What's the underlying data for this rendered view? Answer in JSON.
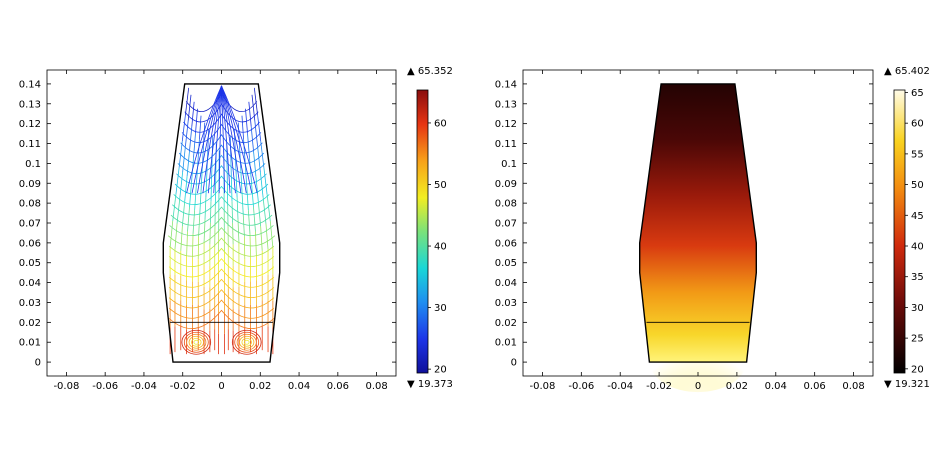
{
  "chart_data": [
    {
      "type": "contour",
      "title": "",
      "xlabel": "",
      "ylabel": "",
      "xlim": [
        -0.09,
        0.09
      ],
      "ylim": [
        -0.007,
        0.147
      ],
      "xticks": [
        -0.08,
        -0.06,
        -0.04,
        -0.02,
        0,
        0.02,
        0.04,
        0.06,
        0.08
      ],
      "xtick_labels": [
        "-0.08",
        "-0.06",
        "-0.04",
        "-0.02",
        "0",
        "0.02",
        "0.04",
        "0.06",
        "0.08"
      ],
      "yticks": [
        0,
        0.01,
        0.02,
        0.03,
        0.04,
        0.05,
        0.06,
        0.07,
        0.08,
        0.09,
        0.1,
        0.11,
        0.12,
        0.13,
        0.14
      ],
      "ytick_labels": [
        "0",
        "0.01",
        "0.02",
        "0.03",
        "0.04",
        "0.05",
        "0.06",
        "0.07",
        "0.08",
        "0.09",
        "0.1",
        "0.11",
        "0.12",
        "0.13",
        "0.14"
      ],
      "geometry_outline": [
        [
          -0.025,
          0
        ],
        [
          0.025,
          0
        ],
        [
          0.03,
          0.06
        ],
        [
          0.03,
          0.045
        ],
        [
          0.019,
          0.14
        ],
        [
          -0.019,
          0.14
        ],
        [
          -0.03,
          0.06
        ],
        [
          -0.03,
          0.045
        ]
      ],
      "divider_y": 0.02,
      "colormap": "rainbow",
      "colorbar": {
        "max_label": "▲ 65.352",
        "min_label": "▼ 19.373",
        "max": 65.352,
        "min": 19.373,
        "ticks": [
          20,
          30,
          40,
          50,
          60
        ],
        "tick_labels": [
          "20",
          "30",
          "40",
          "50",
          "60"
        ]
      }
    },
    {
      "type": "heatmap",
      "title": "",
      "xlabel": "",
      "ylabel": "",
      "xlim": [
        -0.09,
        0.09
      ],
      "ylim": [
        -0.007,
        0.147
      ],
      "xticks": [
        -0.08,
        -0.06,
        -0.04,
        -0.02,
        0,
        0.02,
        0.04,
        0.06,
        0.08
      ],
      "xtick_labels": [
        "-0.08",
        "-0.06",
        "-0.04",
        "-0.02",
        "0",
        "0.02",
        "0.04",
        "0.06",
        "0.08"
      ],
      "yticks": [
        0,
        0.01,
        0.02,
        0.03,
        0.04,
        0.05,
        0.06,
        0.07,
        0.08,
        0.09,
        0.1,
        0.11,
        0.12,
        0.13,
        0.14
      ],
      "ytick_labels": [
        "0",
        "0.01",
        "0.02",
        "0.03",
        "0.04",
        "0.05",
        "0.06",
        "0.07",
        "0.08",
        "0.09",
        "0.1",
        "0.11",
        "0.12",
        "0.13",
        "0.14"
      ],
      "divider_y": 0.02,
      "colormap": "thermal",
      "colorbar": {
        "max_label": "▲ 65.402",
        "min_label": "▼ 19.321",
        "max": 65.402,
        "min": 19.321,
        "ticks": [
          20,
          25,
          30,
          35,
          40,
          45,
          50,
          55,
          60,
          65
        ],
        "tick_labels": [
          "20",
          "25",
          "30",
          "35",
          "40",
          "45",
          "50",
          "55",
          "60",
          "65"
        ]
      }
    }
  ]
}
